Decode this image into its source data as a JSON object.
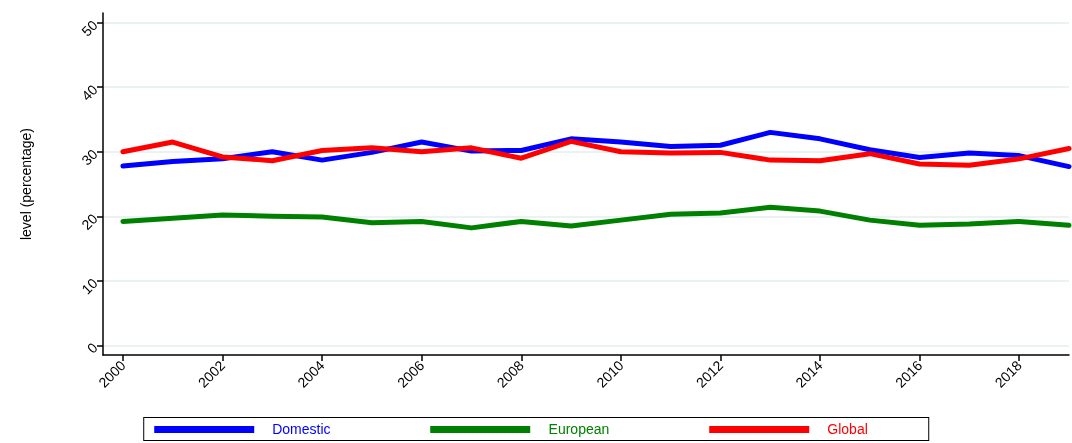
{
  "chart_data": {
    "type": "line",
    "ylabel": "level (percentage)",
    "x": [
      2000,
      2001,
      2002,
      2003,
      2004,
      2005,
      2006,
      2007,
      2008,
      2009,
      2010,
      2011,
      2012,
      2013,
      2014,
      2015,
      2016,
      2017,
      2018,
      2019
    ],
    "series": [
      {
        "name": "Domestic",
        "color": "#0000ff",
        "values": [
          27.8,
          28.5,
          28.9,
          30.0,
          28.7,
          29.9,
          31.5,
          30.1,
          30.2,
          32.0,
          31.5,
          30.8,
          31.0,
          33.0,
          32.0,
          30.3,
          29.1,
          29.8,
          29.4,
          27.7
        ]
      },
      {
        "name": "European",
        "color": "#008000",
        "values": [
          19.2,
          19.7,
          20.2,
          20.0,
          19.9,
          19.0,
          19.2,
          18.2,
          19.2,
          18.5,
          19.4,
          20.3,
          20.5,
          21.4,
          20.8,
          19.4,
          18.6,
          18.8,
          19.2,
          18.6
        ]
      },
      {
        "name": "Global",
        "color": "#ff0000",
        "values": [
          30.0,
          31.5,
          29.2,
          28.6,
          30.2,
          30.6,
          30.0,
          30.6,
          29.0,
          31.6,
          30.0,
          29.8,
          29.9,
          28.7,
          28.6,
          29.7,
          28.1,
          27.9,
          28.9,
          30.5
        ]
      }
    ],
    "xlim": [
      1999.6,
      2019
    ],
    "xticks": [
      2000,
      2002,
      2004,
      2006,
      2008,
      2010,
      2012,
      2014,
      2016,
      2018
    ],
    "ylim": [
      -1.5,
      51.5
    ],
    "yticks": [
      0,
      10,
      20,
      30,
      40,
      50
    ],
    "grid": "y",
    "legend": "bottom",
    "marker": "none",
    "line_style": "solid"
  }
}
